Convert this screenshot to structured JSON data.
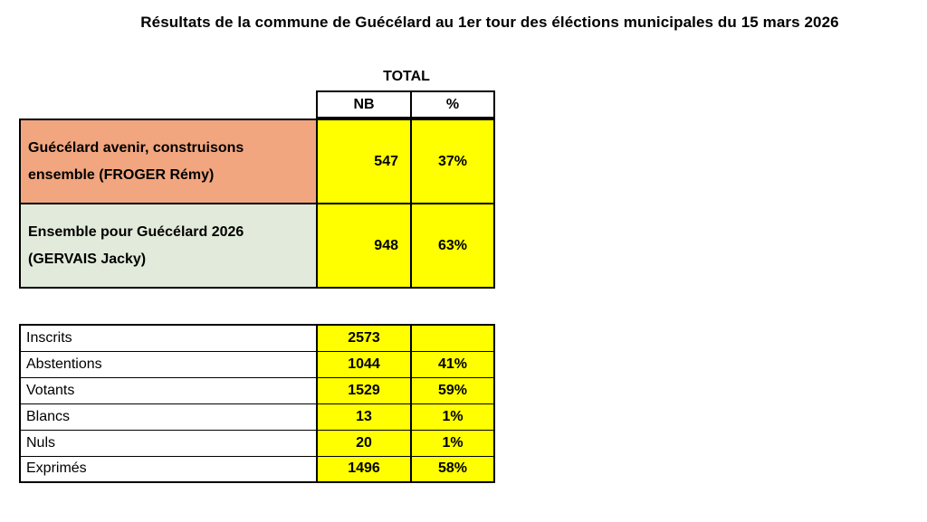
{
  "title": "Résultats de la commune de Guécélard au 1er tour des éléctions municipales du 15 mars 2026",
  "results_table": {
    "group_header": "TOTAL",
    "columns": [
      "NB",
      "%"
    ],
    "rows": [
      {
        "label": "Guécélard avenir, construisons ensemble (FROGER Rémy)",
        "nb": "547",
        "pct": "37%"
      },
      {
        "label": "Ensemble pour Guécélard 2026 (GERVAIS Jacky)",
        "nb": "948",
        "pct": "63%"
      }
    ]
  },
  "stats_table": {
    "rows": [
      {
        "label": "Inscrits",
        "nb": "2573",
        "pct": ""
      },
      {
        "label": "Abstentions",
        "nb": "1044",
        "pct": "41%"
      },
      {
        "label": "Votants",
        "nb": "1529",
        "pct": "59%"
      },
      {
        "label": "Blancs",
        "nb": "13",
        "pct": "1%"
      },
      {
        "label": "Nuls",
        "nb": "20",
        "pct": "1%"
      },
      {
        "label": "Exprimés",
        "nb": "1496",
        "pct": "58%"
      }
    ]
  },
  "colors": {
    "highlight_cell": "#FFFF00",
    "candidate1_row": "#F1A67F",
    "candidate2_row": "#E2EBDB",
    "border": "#000000",
    "background": "#FFFFFF"
  }
}
